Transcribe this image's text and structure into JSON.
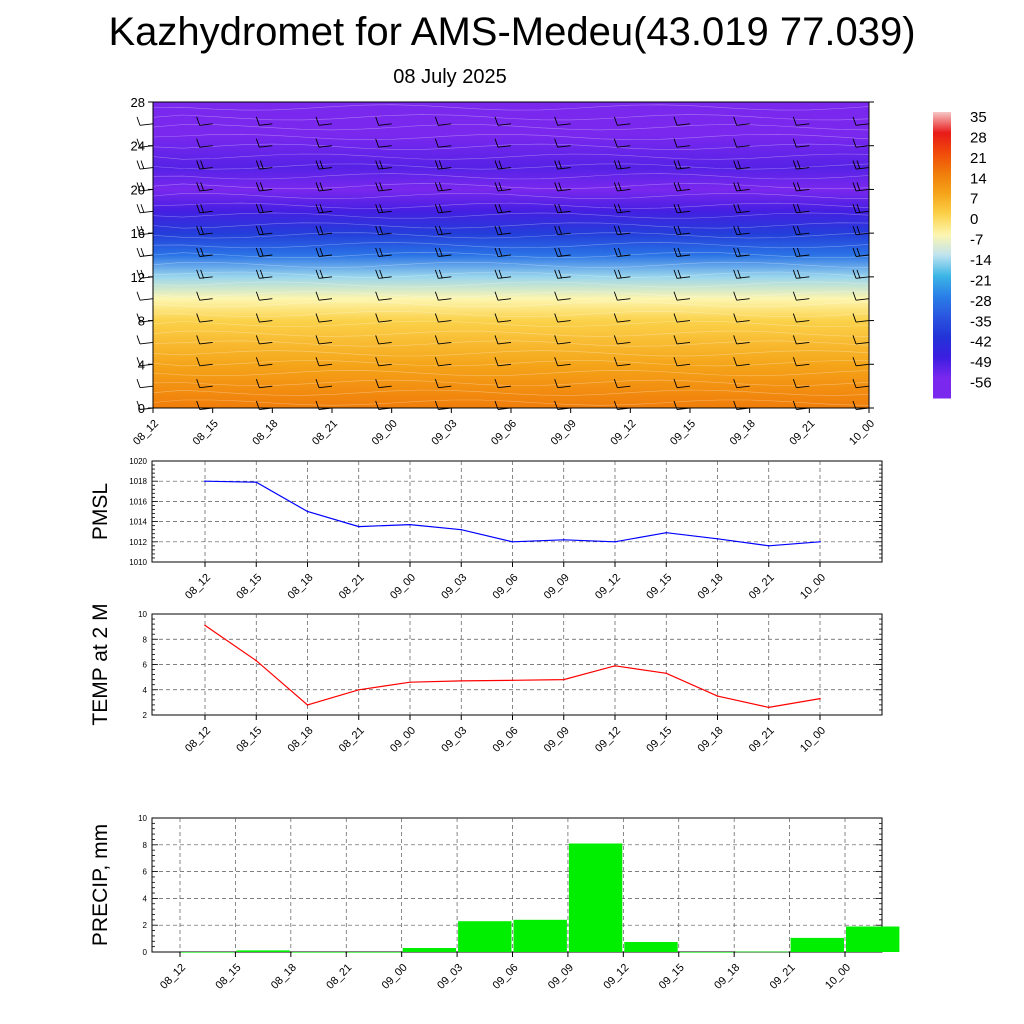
{
  "title": "Kazhydromet for AMS-Medeu(43.019 77.039)",
  "subtitle": "08 July 2025",
  "time_labels": [
    "08_12",
    "08_15",
    "08_18",
    "08_21",
    "09_00",
    "09_03",
    "09_06",
    "09_09",
    "09_12",
    "09_15",
    "09_18",
    "09_21",
    "10_00"
  ],
  "colors": {
    "pmsl_line": "#0000ff",
    "temp_line": "#ff0000",
    "precip_bar": "#00ee00"
  },
  "chart_data": [
    {
      "type": "heatmap",
      "title": "",
      "ylim": [
        0,
        28
      ],
      "yticks": [
        0,
        4,
        8,
        12,
        16,
        20,
        24,
        28
      ],
      "colorbar": {
        "labels": [
          "35",
          "28",
          "21",
          "14",
          "7",
          "0",
          "-7",
          "-14",
          "-21",
          "-28",
          "-35",
          "-42",
          "-49",
          "-56"
        ],
        "colors": [
          "#f6c6c6",
          "#e81a1a",
          "#f04a0a",
          "#f07d0a",
          "#f5a51a",
          "#fbd24a",
          "#fdf6b0",
          "#bfe3f0",
          "#3cb6e6",
          "#2a7fe8",
          "#2a55e0",
          "#2233d8",
          "#3b1ee0",
          "#7a28ee"
        ]
      },
      "temperature_profile": [
        {
          "level": 0,
          "t": 14
        },
        {
          "level": 4,
          "t": 7
        },
        {
          "level": 8,
          "t": 0
        },
        {
          "level": 10,
          "t": -7
        },
        {
          "level": 12,
          "t": -16
        },
        {
          "level": 14,
          "t": -30
        },
        {
          "level": 16,
          "t": -40
        },
        {
          "level": 18,
          "t": -50
        },
        {
          "level": 20,
          "t": -60
        },
        {
          "level": 22,
          "t": -52
        },
        {
          "level": 25,
          "t": -60
        },
        {
          "level": 28,
          "t": -60
        }
      ],
      "wind_barb_levels": [
        0,
        2,
        4,
        6,
        8,
        10,
        12,
        14,
        16,
        18,
        20,
        22,
        24,
        26,
        28
      ]
    },
    {
      "type": "line",
      "ylabel": "PMSL",
      "ylim": [
        1010,
        1020
      ],
      "yticks": [
        1010,
        1012,
        1014,
        1016,
        1018,
        1020
      ],
      "grid": true,
      "series": [
        {
          "values": [
            1018.0,
            1017.9,
            1015.0,
            1013.5,
            1013.7,
            1013.2,
            1012.0,
            1012.2,
            1012.0,
            1012.9,
            1012.3,
            1011.6,
            1012.0
          ]
        }
      ]
    },
    {
      "type": "line",
      "ylabel": "TEMP at 2 M",
      "ylim": [
        2,
        10
      ],
      "yticks": [
        2,
        4,
        6,
        8,
        10
      ],
      "grid": true,
      "series": [
        {
          "values": [
            9.1,
            6.3,
            2.8,
            4.0,
            4.6,
            4.7,
            4.75,
            4.8,
            5.9,
            5.3,
            3.5,
            2.6,
            3.3
          ]
        }
      ]
    },
    {
      "type": "bar",
      "ylabel": "PRECIP, mm",
      "ylim": [
        0,
        10
      ],
      "yticks": [
        0,
        2,
        4,
        6,
        8,
        10
      ],
      "grid": true,
      "values": [
        0,
        0.12,
        0,
        0,
        0.3,
        2.3,
        2.4,
        8.1,
        0.75,
        0,
        0.03,
        1.05,
        1.9
      ]
    }
  ]
}
